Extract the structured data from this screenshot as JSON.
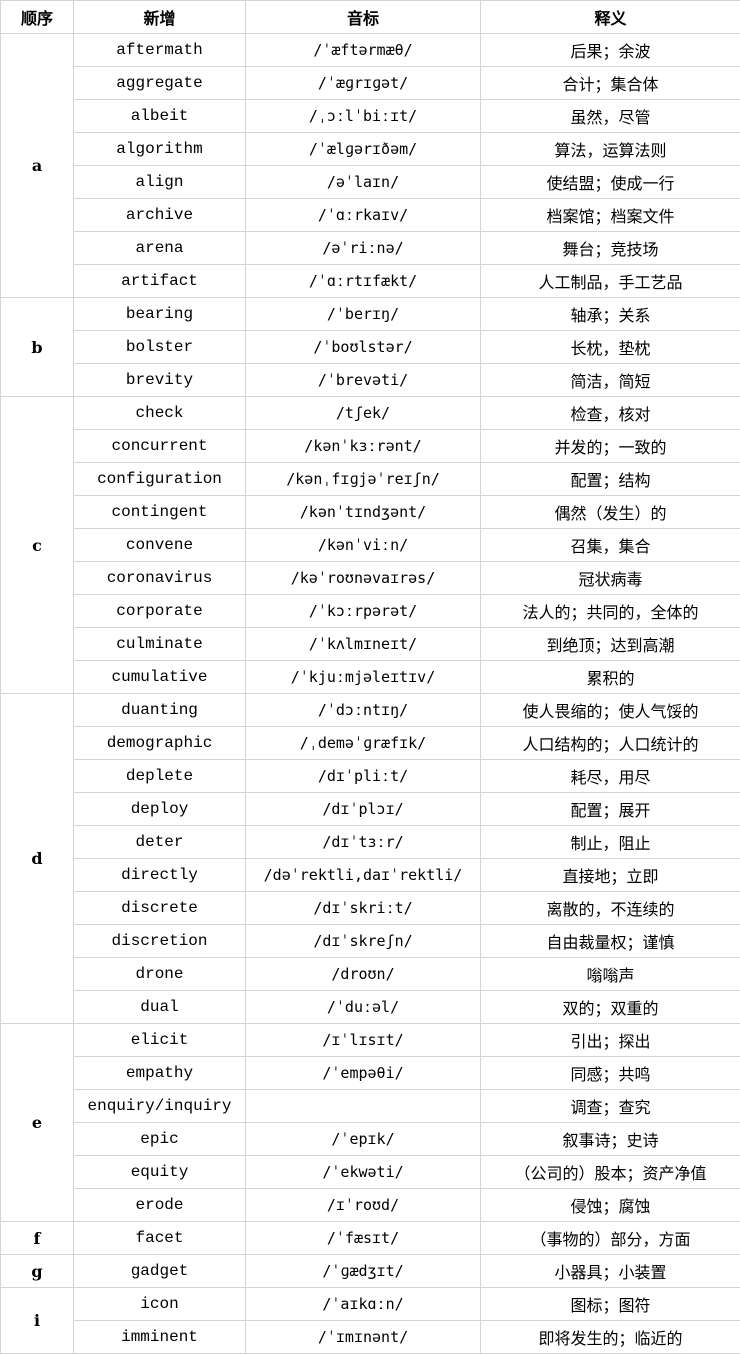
{
  "headers": {
    "order": "顺序",
    "word": "新增",
    "phonetic": "音标",
    "meaning": "释义"
  },
  "groups": [
    {
      "letter": "a",
      "rows": [
        {
          "word": "aftermath",
          "phonetic": "/ˈæftərmæθ/",
          "meaning": "后果；余波"
        },
        {
          "word": "aggregate",
          "phonetic": "/ˈæɡrɪɡət/",
          "meaning": "合计；集合体"
        },
        {
          "word": "albeit",
          "phonetic": "/ˌɔːlˈbiːɪt/",
          "meaning": "虽然，尽管"
        },
        {
          "word": "algorithm",
          "phonetic": "/ˈælɡərɪðəm/",
          "meaning": "算法，运算法则"
        },
        {
          "word": "align",
          "phonetic": "/əˈlaɪn/",
          "meaning": "使结盟；使成一行"
        },
        {
          "word": "archive",
          "phonetic": "/ˈɑːrkaɪv/",
          "meaning": "档案馆；档案文件"
        },
        {
          "word": "arena",
          "phonetic": "/əˈriːnə/",
          "meaning": "舞台；竞技场"
        },
        {
          "word": "artifact",
          "phonetic": "/ˈɑːrtɪfækt/",
          "meaning": "人工制品，手工艺品"
        }
      ]
    },
    {
      "letter": "b",
      "rows": [
        {
          "word": "bearing",
          "phonetic": "/ˈberɪŋ/",
          "meaning": "轴承；关系"
        },
        {
          "word": "bolster",
          "phonetic": "/ˈboʊlstər/",
          "meaning": "长枕，垫枕"
        },
        {
          "word": "brevity",
          "phonetic": "/ˈbrevəti/",
          "meaning": "简洁，简短"
        }
      ]
    },
    {
      "letter": "c",
      "rows": [
        {
          "word": "check",
          "phonetic": "/tʃek/",
          "meaning": "检查，核对"
        },
        {
          "word": "concurrent",
          "phonetic": "/kənˈkɜːrənt/",
          "meaning": "并发的；一致的"
        },
        {
          "word": "configuration",
          "phonetic": "/kənˌfɪɡjəˈreɪʃn/",
          "meaning": "配置；结构"
        },
        {
          "word": "contingent",
          "phonetic": "/kənˈtɪndʒənt/",
          "meaning": "偶然（发生）的"
        },
        {
          "word": "convene",
          "phonetic": "/kənˈviːn/",
          "meaning": "召集，集合"
        },
        {
          "word": "coronavirus",
          "phonetic": "/kəˈroʊnəvaɪrəs/",
          "meaning": "冠状病毒"
        },
        {
          "word": "corporate",
          "phonetic": "/ˈkɔːrpərət/",
          "meaning": "法人的；共同的，全体的"
        },
        {
          "word": "culminate",
          "phonetic": "/ˈkʌlmɪneɪt/",
          "meaning": "到绝顶；达到高潮"
        },
        {
          "word": "cumulative",
          "phonetic": "/ˈkjuːmjəleɪtɪv/",
          "meaning": "累积的"
        }
      ]
    },
    {
      "letter": "d",
      "rows": [
        {
          "word": "duanting",
          "phonetic": "/ˈdɔːntɪŋ/",
          "meaning": "使人畏缩的；使人气馁的"
        },
        {
          "word": "demographic",
          "phonetic": "/ˌdeməˈɡræfɪk/",
          "meaning": "人口结构的；人口统计的"
        },
        {
          "word": "deplete",
          "phonetic": "/dɪˈpliːt/",
          "meaning": "耗尽，用尽"
        },
        {
          "word": "deploy",
          "phonetic": "/dɪˈplɔɪ/",
          "meaning": "配置；展开"
        },
        {
          "word": "deter",
          "phonetic": "/dɪˈtɜːr/",
          "meaning": "制止，阻止"
        },
        {
          "word": "directly",
          "phonetic": "/dəˈrektli,daɪˈrektli/",
          "meaning": "直接地；立即"
        },
        {
          "word": "discrete",
          "phonetic": "/dɪˈskriːt/",
          "meaning": "离散的，不连续的"
        },
        {
          "word": "discretion",
          "phonetic": "/dɪˈskreʃn/",
          "meaning": "自由裁量权；谨慎"
        },
        {
          "word": "drone",
          "phonetic": "/droʊn/",
          "meaning": "嗡嗡声"
        },
        {
          "word": "dual",
          "phonetic": "/ˈduːəl/",
          "meaning": "双的；双重的"
        }
      ]
    },
    {
      "letter": "e",
      "rows": [
        {
          "word": "elicit",
          "phonetic": "/ɪˈlɪsɪt/",
          "meaning": "引出；探出"
        },
        {
          "word": "empathy",
          "phonetic": "/ˈempəθi/",
          "meaning": "同感；共鸣"
        },
        {
          "word": "enquiry/inquiry",
          "phonetic": "",
          "meaning": "调查；查究"
        },
        {
          "word": "epic",
          "phonetic": "/ˈepɪk/",
          "meaning": "叙事诗；史诗"
        },
        {
          "word": "equity",
          "phonetic": "/ˈekwəti/",
          "meaning": "（公司的）股本；资产净值"
        },
        {
          "word": "erode",
          "phonetic": "/ɪˈroʊd/",
          "meaning": "侵蚀；腐蚀"
        }
      ]
    },
    {
      "letter": "f",
      "rows": [
        {
          "word": "facet",
          "phonetic": "/ˈfæsɪt/",
          "meaning": "（事物的）部分，方面"
        }
      ]
    },
    {
      "letter": "g",
      "rows": [
        {
          "word": "gadget",
          "phonetic": "/ˈɡædʒɪt/",
          "meaning": "小器具；小装置"
        }
      ]
    },
    {
      "letter": "i",
      "rows": [
        {
          "word": "icon",
          "phonetic": "/ˈaɪkɑːn/",
          "meaning": "图标；图符"
        },
        {
          "word": "imminent",
          "phonetic": "/ˈɪmɪnənt/",
          "meaning": "即将发生的；临近的"
        }
      ]
    }
  ]
}
